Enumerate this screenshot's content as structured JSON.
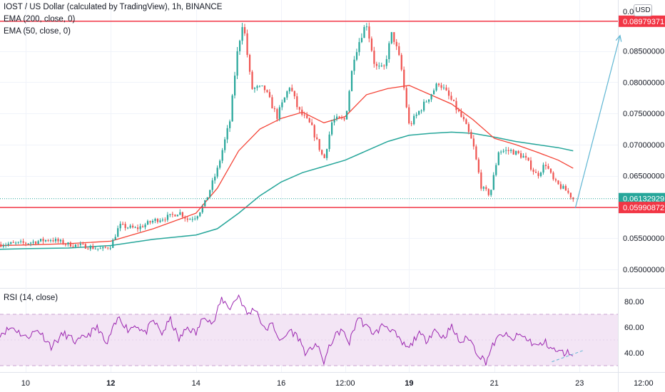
{
  "header": {
    "symbol_line": "IOST / US Dollar (calculated by TradingView), 1h, BINANCE",
    "ema200_label": "EMA (200, close, 0)",
    "ema50_label": "EMA (50, close, 0)",
    "rsi_label": "RSI (14, close)",
    "currency_badge": "USD"
  },
  "colors": {
    "up": "#26a69a",
    "down": "#ef5350",
    "ema50": "#f44336",
    "ema200": "#26a69a",
    "level": "#f23645",
    "rsi_line": "#9c27b0",
    "rsi_band": "#f3e5f5",
    "arrow": "#5fb6d3",
    "last_price_bg": "#26a69a"
  },
  "chart_data": [
    {
      "type": "candlestick",
      "title": "IOST / US Dollar (calculated by TradingView), 1h, BINANCE",
      "y_range": [
        0.047,
        0.0932
      ],
      "y_ticks": [
        "0.05000000",
        "0.05500000",
        "0.06500000",
        "0.07000000",
        "0.07500000",
        "0.08000000",
        "0.08500000"
      ],
      "y_top_label": "0.0",
      "x_range": [
        -0.6,
        13.9
      ],
      "x_ticks": [
        {
          "x": 0.0,
          "label": "10"
        },
        {
          "x": 2.0,
          "label": "12"
        },
        {
          "x": 4.0,
          "label": "14"
        },
        {
          "x": 6.0,
          "label": "16"
        },
        {
          "x": 7.5,
          "label": "12:00"
        },
        {
          "x": 9.0,
          "label": "19"
        },
        {
          "x": 11.0,
          "label": "21"
        },
        {
          "x": 13.0,
          "label": "23"
        },
        {
          "x": 14.5,
          "label": "12:00"
        }
      ],
      "price_path": [
        [
          -0.6,
          0.054
        ],
        [
          0.0,
          0.0542
        ],
        [
          0.6,
          0.0548
        ],
        [
          1.0,
          0.054
        ],
        [
          1.4,
          0.0537
        ],
        [
          1.8,
          0.0532
        ],
        [
          2.0,
          0.0538
        ],
        [
          2.2,
          0.057
        ],
        [
          2.6,
          0.0565
        ],
        [
          3.0,
          0.0578
        ],
        [
          3.4,
          0.0585
        ],
        [
          3.6,
          0.0592
        ],
        [
          3.8,
          0.058
        ],
        [
          4.0,
          0.0585
        ],
        [
          4.2,
          0.0605
        ],
        [
          4.5,
          0.066
        ],
        [
          4.8,
          0.074
        ],
        [
          4.95,
          0.084
        ],
        [
          5.1,
          0.09
        ],
        [
          5.3,
          0.079
        ],
        [
          5.6,
          0.079
        ],
        [
          5.9,
          0.0745
        ],
        [
          6.2,
          0.0795
        ],
        [
          6.4,
          0.0755
        ],
        [
          6.7,
          0.073
        ],
        [
          7.0,
          0.0675
        ],
        [
          7.2,
          0.074
        ],
        [
          7.5,
          0.074
        ],
        [
          7.7,
          0.084
        ],
        [
          7.9,
          0.088
        ],
        [
          8.0,
          0.0895
        ],
        [
          8.2,
          0.0825
        ],
        [
          8.4,
          0.082
        ],
        [
          8.6,
          0.088
        ],
        [
          8.8,
          0.083
        ],
        [
          9.0,
          0.073
        ],
        [
          9.2,
          0.075
        ],
        [
          9.5,
          0.078
        ],
        [
          9.7,
          0.08
        ],
        [
          10.0,
          0.077
        ],
        [
          10.3,
          0.0735
        ],
        [
          10.5,
          0.07
        ],
        [
          10.7,
          0.063
        ],
        [
          10.9,
          0.062
        ],
        [
          11.1,
          0.069
        ],
        [
          11.4,
          0.069
        ],
        [
          11.7,
          0.068
        ],
        [
          12.0,
          0.065
        ],
        [
          12.2,
          0.067
        ],
        [
          12.4,
          0.064
        ],
        [
          12.7,
          0.0625
        ],
        [
          12.85,
          0.0613
        ]
      ],
      "ema50": [
        [
          -0.6,
          0.0538
        ],
        [
          0.0,
          0.0539
        ],
        [
          1.0,
          0.0541
        ],
        [
          2.0,
          0.0545
        ],
        [
          3.0,
          0.0565
        ],
        [
          4.0,
          0.059
        ],
        [
          4.5,
          0.063
        ],
        [
          5.0,
          0.069
        ],
        [
          5.5,
          0.0725
        ],
        [
          6.0,
          0.0742
        ],
        [
          6.5,
          0.0752
        ],
        [
          7.0,
          0.0735
        ],
        [
          7.5,
          0.0745
        ],
        [
          8.0,
          0.078
        ],
        [
          8.5,
          0.079
        ],
        [
          9.0,
          0.0795
        ],
        [
          9.5,
          0.078
        ],
        [
          10.0,
          0.0765
        ],
        [
          10.5,
          0.074
        ],
        [
          11.0,
          0.071
        ],
        [
          11.5,
          0.07
        ],
        [
          12.0,
          0.0688
        ],
        [
          12.5,
          0.0675
        ],
        [
          12.85,
          0.0662
        ]
      ],
      "ema200": [
        [
          -0.6,
          0.0532
        ],
        [
          0.0,
          0.0533
        ],
        [
          1.0,
          0.0534
        ],
        [
          2.0,
          0.0538
        ],
        [
          3.0,
          0.0548
        ],
        [
          4.0,
          0.0555
        ],
        [
          4.5,
          0.0565
        ],
        [
          5.0,
          0.059
        ],
        [
          5.5,
          0.0618
        ],
        [
          6.0,
          0.064
        ],
        [
          6.5,
          0.0655
        ],
        [
          7.0,
          0.0665
        ],
        [
          7.5,
          0.0675
        ],
        [
          8.0,
          0.069
        ],
        [
          8.5,
          0.0705
        ],
        [
          9.0,
          0.0715
        ],
        [
          9.5,
          0.0718
        ],
        [
          10.0,
          0.072
        ],
        [
          10.5,
          0.0718
        ],
        [
          11.0,
          0.0712
        ],
        [
          11.5,
          0.0705
        ],
        [
          12.0,
          0.07
        ],
        [
          12.5,
          0.0695
        ],
        [
          12.85,
          0.069
        ]
      ],
      "levels": [
        {
          "value": 0.08979371,
          "label": "0.08979371"
        },
        {
          "value": 0.05990872,
          "label": "0.05990872"
        }
      ],
      "last_price": {
        "value": 0.06132929,
        "label": "0.06132929"
      },
      "forecast_arrow": {
        "from": [
          12.9,
          0.0598
        ],
        "to": [
          13.95,
          0.0875
        ]
      }
    },
    {
      "type": "line",
      "title": "RSI (14, close)",
      "y_range": [
        25,
        90
      ],
      "y_ticks": [
        "40.00",
        "60.00",
        "80.00"
      ],
      "band": [
        30,
        70
      ],
      "series": [
        {
          "values": [
            [
              -0.6,
              55
            ],
            [
              -0.3,
              60
            ],
            [
              0.0,
              52
            ],
            [
              0.3,
              58
            ],
            [
              0.6,
              45
            ],
            [
              0.9,
              55
            ],
            [
              1.2,
              48
            ],
            [
              1.5,
              55
            ],
            [
              1.7,
              60
            ],
            [
              1.9,
              45
            ],
            [
              2.0,
              55
            ],
            [
              2.2,
              68
            ],
            [
              2.4,
              58
            ],
            [
              2.6,
              62
            ],
            [
              2.8,
              55
            ],
            [
              3.0,
              65
            ],
            [
              3.2,
              55
            ],
            [
              3.4,
              66
            ],
            [
              3.6,
              50
            ],
            [
              3.8,
              60
            ],
            [
              4.0,
              55
            ],
            [
              4.2,
              70
            ],
            [
              4.4,
              62
            ],
            [
              4.6,
              82
            ],
            [
              4.8,
              75
            ],
            [
              5.0,
              85
            ],
            [
              5.2,
              70
            ],
            [
              5.4,
              75
            ],
            [
              5.6,
              58
            ],
            [
              5.8,
              62
            ],
            [
              6.0,
              48
            ],
            [
              6.2,
              58
            ],
            [
              6.4,
              52
            ],
            [
              6.6,
              38
            ],
            [
              6.8,
              48
            ],
            [
              7.0,
              33
            ],
            [
              7.2,
              50
            ],
            [
              7.4,
              58
            ],
            [
              7.6,
              48
            ],
            [
              7.8,
              68
            ],
            [
              8.0,
              60
            ],
            [
              8.2,
              55
            ],
            [
              8.4,
              62
            ],
            [
              8.6,
              58
            ],
            [
              8.8,
              48
            ],
            [
              9.0,
              43
            ],
            [
              9.2,
              55
            ],
            [
              9.4,
              50
            ],
            [
              9.6,
              58
            ],
            [
              9.8,
              52
            ],
            [
              10.0,
              60
            ],
            [
              10.2,
              48
            ],
            [
              10.4,
              52
            ],
            [
              10.6,
              40
            ],
            [
              10.8,
              33
            ],
            [
              11.0,
              48
            ],
            [
              11.2,
              55
            ],
            [
              11.4,
              50
            ],
            [
              11.6,
              54
            ],
            [
              11.8,
              50
            ],
            [
              12.0,
              45
            ],
            [
              12.2,
              48
            ],
            [
              12.4,
              42
            ],
            [
              12.6,
              40
            ],
            [
              12.85,
              40
            ]
          ]
        }
      ]
    }
  ]
}
